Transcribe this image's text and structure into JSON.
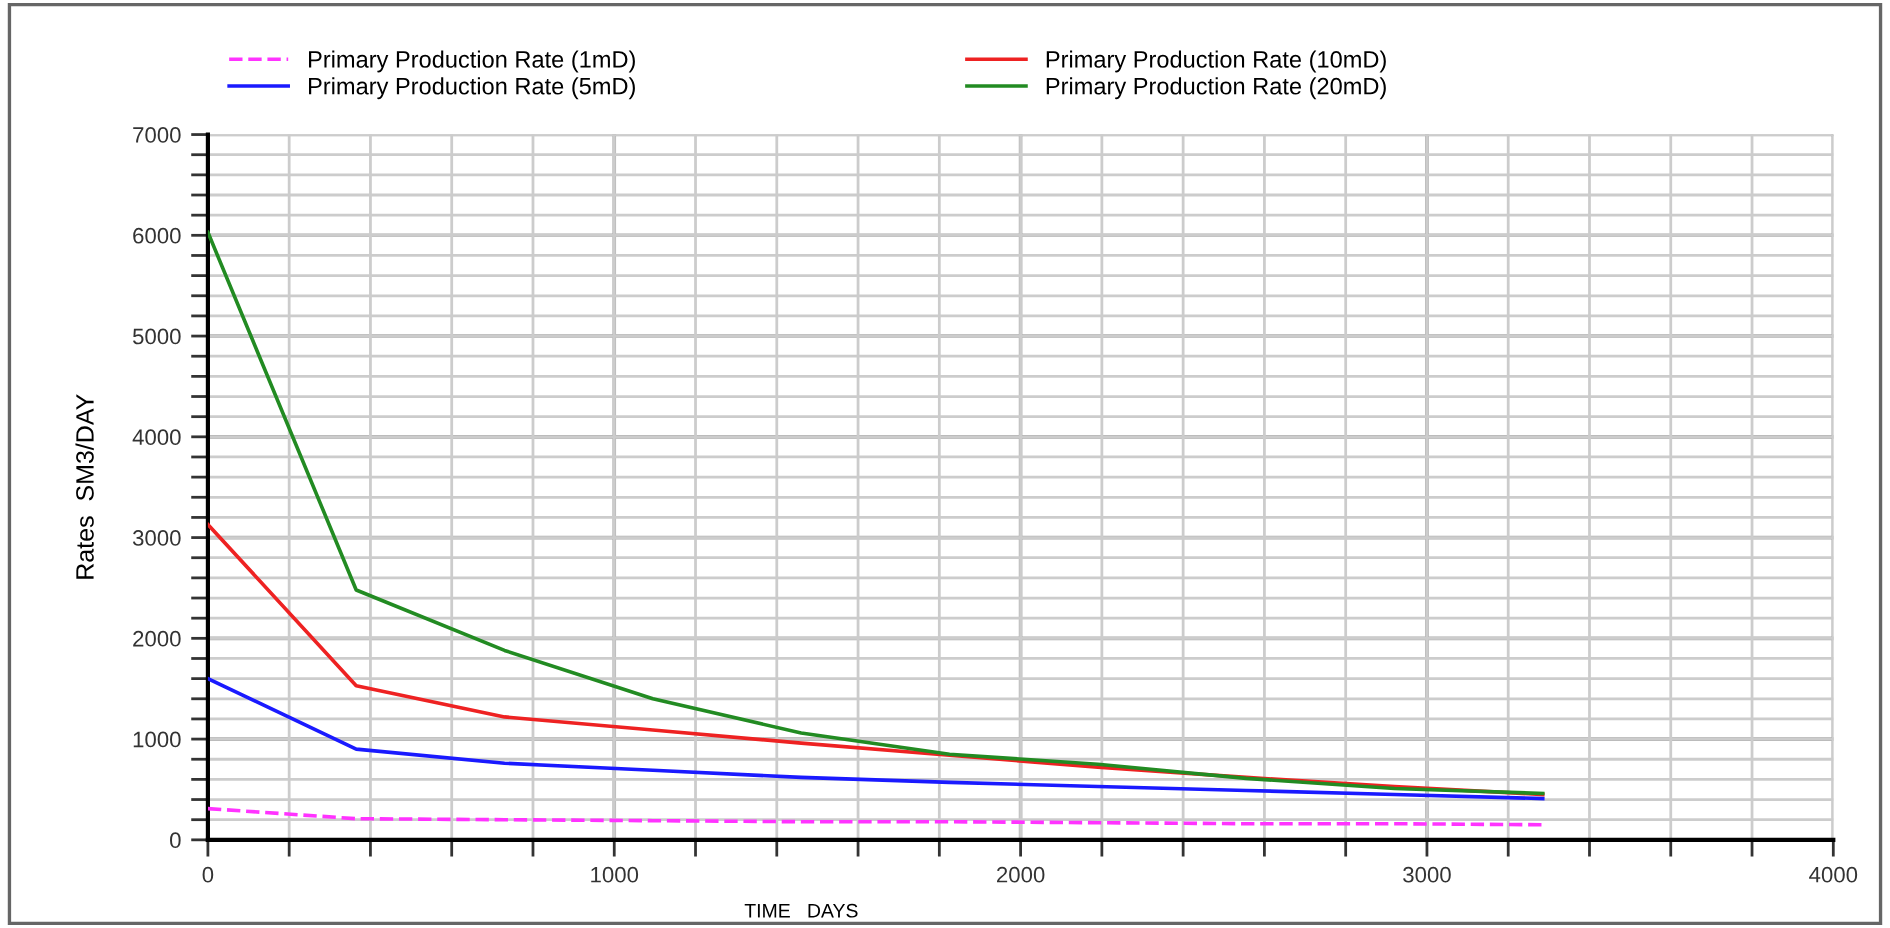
{
  "chart_data": {
    "type": "line",
    "xlabel": "TIME   DAYS",
    "ylabel": "Rates  SM3/DAY",
    "x": [
      0,
      365,
      730,
      1095,
      1460,
      1825,
      2190,
      2555,
      2920,
      3285
    ],
    "series": [
      {
        "name": "Primary Production Rate (1mD)",
        "color": "#ff33ff",
        "line_style": "dashed",
        "values": [
          310,
          210,
          200,
          190,
          180,
          180,
          170,
          160,
          160,
          150
        ]
      },
      {
        "name": "Primary Production Rate (5mD)",
        "color": "#1a1aff",
        "values": [
          1600,
          900,
          760,
          690,
          620,
          570,
          530,
          490,
          450,
          410
        ]
      },
      {
        "name": "Primary Production Rate (10mD)",
        "color": "#ee2222",
        "values": [
          3130,
          1530,
          1220,
          1090,
          960,
          840,
          720,
          620,
          530,
          450
        ]
      },
      {
        "name": "Primary Production Rate (20mD)",
        "color": "#228b22",
        "values": [
          6030,
          2480,
          1880,
          1400,
          1060,
          850,
          750,
          610,
          510,
          460
        ]
      }
    ],
    "xlim": [
      0,
      4000
    ],
    "ylim": [
      0,
      7000
    ],
    "xticks": [
      0,
      {
        "value": 200,
        "label": null
      },
      {
        "value": 400,
        "label": null
      },
      {
        "value": 600,
        "label": null
      },
      {
        "value": 800,
        "label": null
      },
      1000,
      {
        "value": 1200,
        "label": null
      },
      {
        "value": 1400,
        "label": null
      },
      {
        "value": 1600,
        "label": null
      },
      {
        "value": 1800,
        "label": null
      },
      2000,
      {
        "value": 2200,
        "label": null
      },
      {
        "value": 2400,
        "label": null
      },
      {
        "value": 2600,
        "label": null
      },
      {
        "value": 2800,
        "label": null
      },
      3000,
      {
        "value": 3200,
        "label": null
      },
      {
        "value": 3400,
        "label": null
      },
      {
        "value": 3600,
        "label": null
      },
      {
        "value": 3800,
        "label": null
      },
      4000
    ],
    "yticks": [
      0,
      {
        "value": 200,
        "label": null
      },
      {
        "value": 400,
        "label": null
      },
      {
        "value": 600,
        "label": null
      },
      {
        "value": 800,
        "label": null
      },
      1000,
      {
        "value": 1200,
        "label": null
      },
      {
        "value": 1400,
        "label": null
      },
      {
        "value": 1600,
        "label": null
      },
      {
        "value": 1800,
        "label": null
      },
      2000,
      {
        "value": 2200,
        "label": null
      },
      {
        "value": 2400,
        "label": null
      },
      {
        "value": 2600,
        "label": null
      },
      {
        "value": 2800,
        "label": null
      },
      3000,
      {
        "value": 3200,
        "label": null
      },
      {
        "value": 3400,
        "label": null
      },
      {
        "value": 3600,
        "label": null
      },
      {
        "value": 3800,
        "label": null
      },
      4000,
      {
        "value": 4200,
        "label": null
      },
      {
        "value": 4400,
        "label": null
      },
      {
        "value": 4600,
        "label": null
      },
      {
        "value": 4800,
        "label": null
      },
      5000,
      {
        "value": 5200,
        "label": null
      },
      {
        "value": 5400,
        "label": null
      },
      {
        "value": 5600,
        "label": null
      },
      {
        "value": 5800,
        "label": null
      },
      6000,
      {
        "value": 6200,
        "label": null
      },
      {
        "value": 6400,
        "label": null
      },
      {
        "value": 6600,
        "label": null
      },
      {
        "value": 6800,
        "label": null
      },
      7000
    ],
    "grid": true,
    "legend": "top",
    "marker": "none",
    "line_style": "solid"
  }
}
